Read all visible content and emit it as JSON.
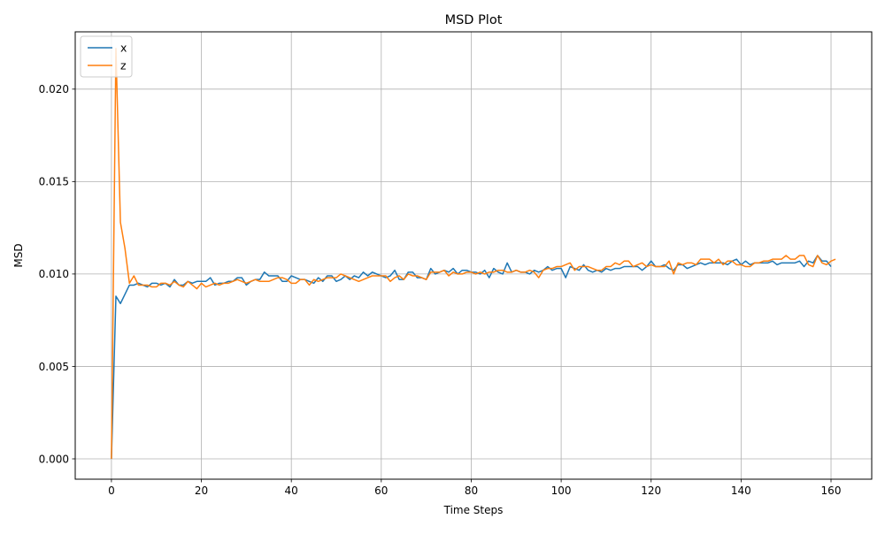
{
  "chart_data": {
    "type": "line",
    "title": "MSD Plot",
    "xlabel": "Time Steps",
    "ylabel": "MSD",
    "xlim": [
      -8.05,
      169.05
    ],
    "ylim": [
      -0.0011,
      0.0231
    ],
    "xticks": [
      0,
      20,
      40,
      60,
      80,
      100,
      120,
      140,
      160
    ],
    "xtick_labels": [
      "0",
      "20",
      "40",
      "60",
      "80",
      "100",
      "120",
      "140",
      "160"
    ],
    "yticks": [
      0.0,
      0.005,
      0.01,
      0.015,
      0.02
    ],
    "ytick_labels": [
      "0.000",
      "0.005",
      "0.010",
      "0.015",
      "0.020"
    ],
    "grid": true,
    "legend_position": "top-left",
    "series": [
      {
        "name": "x",
        "color": "#1f77b4",
        "values": [
          0.0,
          0.0088,
          0.0084,
          0.0089,
          0.0094,
          0.0094,
          0.0095,
          0.0094,
          0.0093,
          0.0095,
          0.0095,
          0.0094,
          0.0095,
          0.0093,
          0.0097,
          0.0094,
          0.0094,
          0.0096,
          0.0095,
          0.0096,
          0.0096,
          0.0096,
          0.0098,
          0.0094,
          0.0095,
          0.0095,
          0.0096,
          0.0096,
          0.0098,
          0.0098,
          0.0094,
          0.0096,
          0.0097,
          0.0097,
          0.0101,
          0.0099,
          0.0099,
          0.0099,
          0.0096,
          0.0096,
          0.0099,
          0.0098,
          0.0097,
          0.0097,
          0.0096,
          0.0095,
          0.0098,
          0.0096,
          0.0099,
          0.0099,
          0.0096,
          0.0097,
          0.0099,
          0.0097,
          0.0099,
          0.0098,
          0.0101,
          0.0099,
          0.0101,
          0.01,
          0.0099,
          0.0098,
          0.0099,
          0.0102,
          0.0097,
          0.0097,
          0.0101,
          0.0101,
          0.0098,
          0.0098,
          0.0097,
          0.0103,
          0.01,
          0.0101,
          0.0102,
          0.0101,
          0.0103,
          0.01,
          0.0102,
          0.0102,
          0.0101,
          0.0101,
          0.01,
          0.0102,
          0.0098,
          0.0103,
          0.0101,
          0.01,
          0.0106,
          0.0101,
          0.0102,
          0.0101,
          0.0101,
          0.01,
          0.0102,
          0.0101,
          0.0102,
          0.0104,
          0.0102,
          0.0103,
          0.0103,
          0.0098,
          0.0104,
          0.0103,
          0.0102,
          0.0105,
          0.0102,
          0.0101,
          0.0102,
          0.0101,
          0.0103,
          0.0102,
          0.0103,
          0.0103,
          0.0104,
          0.0104,
          0.0104,
          0.0104,
          0.0102,
          0.0104,
          0.0107,
          0.0104,
          0.0104,
          0.0105,
          0.0103,
          0.0102,
          0.0105,
          0.0105,
          0.0103,
          0.0104,
          0.0105,
          0.0106,
          0.0105,
          0.0106,
          0.0106,
          0.0106,
          0.0106,
          0.0105,
          0.0107,
          0.0108,
          0.0105,
          0.0107,
          0.0105,
          0.0106,
          0.0106,
          0.0106,
          0.0106,
          0.0107,
          0.0105,
          0.0106,
          0.0106,
          0.0106,
          0.0106,
          0.0107,
          0.0104,
          0.0107,
          0.0106,
          0.011,
          0.0107,
          0.0107,
          0.0104
        ]
      },
      {
        "name": "z",
        "color": "#ff7f0e",
        "values": [
          0.0,
          0.0222,
          0.0128,
          0.0114,
          0.0095,
          0.0099,
          0.0094,
          0.0094,
          0.0094,
          0.0093,
          0.0093,
          0.0095,
          0.0095,
          0.0094,
          0.0096,
          0.0094,
          0.0093,
          0.0096,
          0.0094,
          0.0092,
          0.0095,
          0.0093,
          0.0094,
          0.0095,
          0.0094,
          0.0095,
          0.0095,
          0.0096,
          0.0097,
          0.0096,
          0.0095,
          0.0096,
          0.0097,
          0.0096,
          0.0096,
          0.0096,
          0.0097,
          0.0098,
          0.0098,
          0.0097,
          0.0095,
          0.0095,
          0.0097,
          0.0097,
          0.0094,
          0.0097,
          0.0096,
          0.0097,
          0.0098,
          0.0098,
          0.0098,
          0.01,
          0.0099,
          0.0098,
          0.0097,
          0.0096,
          0.0097,
          0.0098,
          0.0099,
          0.0099,
          0.0099,
          0.0099,
          0.0096,
          0.0098,
          0.0099,
          0.0097,
          0.01,
          0.0099,
          0.0099,
          0.0098,
          0.0097,
          0.0101,
          0.0101,
          0.0101,
          0.0102,
          0.0099,
          0.0101,
          0.01,
          0.01,
          0.0101,
          0.0101,
          0.01,
          0.0101,
          0.01,
          0.0101,
          0.0101,
          0.0102,
          0.0102,
          0.0101,
          0.0101,
          0.0102,
          0.0101,
          0.0101,
          0.0102,
          0.0101,
          0.0098,
          0.0102,
          0.0103,
          0.0103,
          0.0104,
          0.0104,
          0.0105,
          0.0106,
          0.0102,
          0.0104,
          0.0104,
          0.0104,
          0.0103,
          0.0102,
          0.0102,
          0.0104,
          0.0104,
          0.0106,
          0.0105,
          0.0107,
          0.0107,
          0.0104,
          0.0105,
          0.0106,
          0.0104,
          0.0105,
          0.0104,
          0.0104,
          0.0104,
          0.0107,
          0.01,
          0.0106,
          0.0105,
          0.0106,
          0.0106,
          0.0105,
          0.0108,
          0.0108,
          0.0108,
          0.0106,
          0.0108,
          0.0105,
          0.0107,
          0.0107,
          0.0105,
          0.0105,
          0.0104,
          0.0104,
          0.0106,
          0.0106,
          0.0107,
          0.0107,
          0.0108,
          0.0108,
          0.0108,
          0.011,
          0.0108,
          0.0108,
          0.011,
          0.011,
          0.0105,
          0.0104,
          0.011,
          0.0106,
          0.0105,
          0.0107,
          0.0108
        ]
      }
    ]
  }
}
